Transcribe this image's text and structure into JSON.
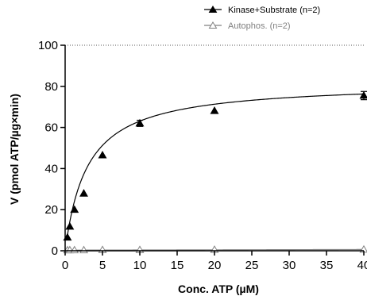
{
  "chart_data": {
    "type": "scatter",
    "xlabel": "Conc. ATP (µM)",
    "ylabel": "V (pmol ATP/µg×min)",
    "xlim": [
      0,
      40
    ],
    "ylim": [
      0,
      100
    ],
    "x_ticks": [
      0,
      5,
      10,
      15,
      20,
      25,
      30,
      35,
      40
    ],
    "y_ticks": [
      0,
      20,
      40,
      60,
      80,
      100
    ],
    "x_tick_labels": [
      "0",
      "5",
      "10",
      "15",
      "20",
      "25",
      "30",
      "35",
      "40"
    ],
    "y_tick_labels": [
      "0",
      "20",
      "40",
      "60",
      "80",
      "100"
    ],
    "grid": false,
    "legend_position": "top-right",
    "series": [
      {
        "name": "Kinase+Substrate (n=2)",
        "marker": "filled-triangle",
        "color": "#000000",
        "x": [
          0.3125,
          0.625,
          1.25,
          2.5,
          5,
          10,
          20,
          40
        ],
        "y": [
          6.5,
          11.8,
          20.0,
          27.9,
          46.5,
          62.0,
          68.1,
          75.5
        ],
        "errors": [
          0,
          0,
          0,
          0,
          0,
          1.5,
          0,
          2.0
        ],
        "fit": {
          "model": "michaelis-menten",
          "vmax": 82,
          "km": 3.0
        }
      },
      {
        "name": "Autophos. (n=2)",
        "marker": "open-triangle",
        "color": "#808080",
        "x": [
          0.3125,
          0.625,
          1.25,
          2.5,
          5,
          10,
          20,
          40
        ],
        "y": [
          0.3,
          0.3,
          0.3,
          0.3,
          0.4,
          0.4,
          0.5,
          0.6
        ],
        "errors": [
          0,
          0,
          0,
          0,
          0,
          0,
          0,
          0
        ],
        "fit": {
          "model": "linear",
          "slope": 0.008,
          "intercept": 0.3
        }
      }
    ]
  }
}
